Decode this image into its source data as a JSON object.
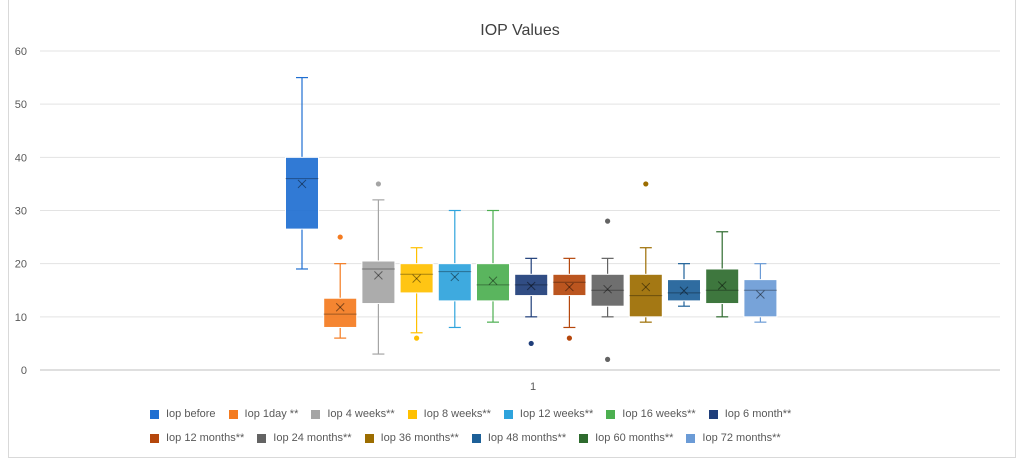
{
  "chart_data": {
    "type": "box",
    "title": "IOP Values",
    "xlabel": "",
    "ylabel": "",
    "categories": [
      "1"
    ],
    "ylim": [
      0,
      60
    ],
    "yticks": [
      0,
      10,
      20,
      30,
      40,
      50,
      60
    ],
    "grid": true,
    "legend": "bottom",
    "series": [
      {
        "name": "Iop before",
        "color": "#1f6fd1",
        "min": 19,
        "q1": 26.5,
        "median": 36,
        "q3": 40,
        "max": 55,
        "mean": 35,
        "outliers": []
      },
      {
        "name": "Iop 1day **",
        "color": "#f47b20",
        "min": 6,
        "q1": 8,
        "median": 10.5,
        "q3": 13.5,
        "max": 20,
        "mean": 11.8,
        "outliers": [
          25
        ]
      },
      {
        "name": "Iop 4 weeks**",
        "color": "#a5a5a5",
        "min": 3,
        "q1": 12.5,
        "median": 19,
        "q3": 20.5,
        "max": 32,
        "mean": 17.8,
        "outliers": [
          35
        ]
      },
      {
        "name": "Iop 8 weeks**",
        "color": "#ffc000",
        "min": 7,
        "q1": 14.5,
        "median": 18,
        "q3": 20,
        "max": 23,
        "mean": 17.2,
        "outliers": [
          6
        ]
      },
      {
        "name": "Iop 12 weeks**",
        "color": "#2ea3dc",
        "min": 8,
        "q1": 13,
        "median": 18.5,
        "q3": 20,
        "max": 30,
        "mean": 17.5,
        "outliers": []
      },
      {
        "name": "Iop 16 weeks**",
        "color": "#4caf50",
        "min": 9,
        "q1": 13,
        "median": 16,
        "q3": 20,
        "max": 30,
        "mean": 16.8,
        "outliers": []
      },
      {
        "name": "Iop 6 month**",
        "color": "#1f3e7a",
        "min": 10,
        "q1": 14,
        "median": 16,
        "q3": 18,
        "max": 21,
        "mean": 15.8,
        "outliers": [
          5
        ]
      },
      {
        "name": "Iop 12 months**",
        "color": "#b5470c",
        "min": 8,
        "q1": 14,
        "median": 16.5,
        "q3": 18,
        "max": 21,
        "mean": 15.6,
        "outliers": [
          6
        ]
      },
      {
        "name": "Iop 24 months**",
        "color": "#636363",
        "min": 10,
        "q1": 12,
        "median": 15,
        "q3": 18,
        "max": 21,
        "mean": 15.2,
        "outliers": [
          28,
          2
        ]
      },
      {
        "name": "Iop 36 months**",
        "color": "#9c6d00",
        "min": 9,
        "q1": 10,
        "median": 14,
        "q3": 18,
        "max": 23,
        "mean": 15.6,
        "outliers": [
          35
        ]
      },
      {
        "name": "Iop 48 months**",
        "color": "#1d6098",
        "min": 12,
        "q1": 13,
        "median": 14.5,
        "q3": 17,
        "max": 20,
        "mean": 14.9,
        "outliers": []
      },
      {
        "name": "Iop 60 months**",
        "color": "#2e6b2e",
        "min": 10,
        "q1": 12.5,
        "median": 15,
        "q3": 19,
        "max": 26,
        "mean": 15.9,
        "outliers": []
      },
      {
        "name": "Iop 72 months**",
        "color": "#6b9bd6",
        "min": 9,
        "q1": 10,
        "median": 15,
        "q3": 17,
        "max": 20,
        "mean": 14.2,
        "outliers": []
      }
    ]
  }
}
